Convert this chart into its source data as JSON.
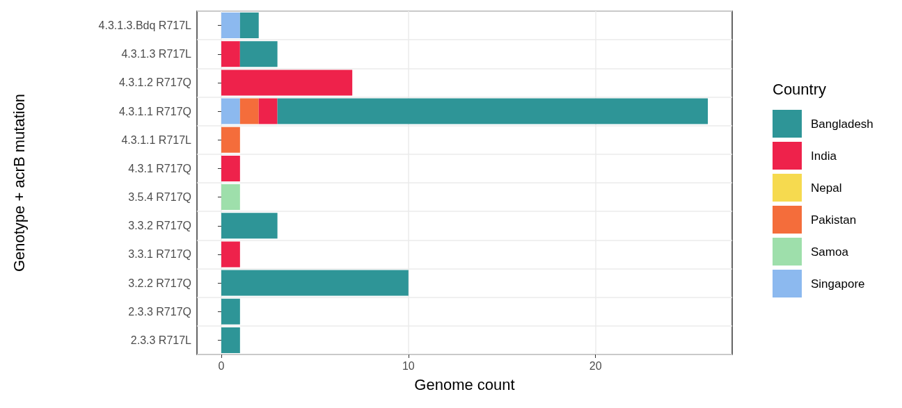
{
  "chart_data": {
    "type": "bar",
    "orientation": "horizontal",
    "stacked": true,
    "xlabel": "Genome count",
    "ylabel": "Genotype + acrB mutation",
    "legend_title": "Country",
    "legend": "right",
    "grid": true,
    "categories": [
      "4.3.1.3.Bdq R717L",
      "4.3.1.3 R717L",
      "4.3.1.2 R717Q",
      "4.3.1.1 R717Q",
      "4.3.1.1 R717L",
      "4.3.1 R717Q",
      "3.5.4 R717Q",
      "3.3.2 R717Q",
      "3.3.1 R717Q",
      "3.2.2 R717Q",
      "2.3.3 R717Q",
      "2.3.3 R717L"
    ],
    "xlim": [
      -1.3,
      27.3
    ],
    "xticks": [
      0,
      10,
      20
    ],
    "series": [
      {
        "name": "Singapore",
        "color": "#8cb9ef",
        "values": [
          1,
          null,
          null,
          1,
          null,
          null,
          null,
          null,
          null,
          null,
          null,
          null
        ]
      },
      {
        "name": "Samoa",
        "color": "#9edfab",
        "values": [
          null,
          null,
          null,
          null,
          null,
          null,
          1,
          null,
          null,
          null,
          null,
          null
        ]
      },
      {
        "name": "Pakistan",
        "color": "#f46d3b",
        "values": [
          null,
          null,
          null,
          1,
          1,
          null,
          null,
          null,
          null,
          null,
          null,
          null
        ]
      },
      {
        "name": "Nepal",
        "color": "#f6da4f",
        "values": [
          null,
          null,
          null,
          null,
          null,
          null,
          null,
          null,
          null,
          null,
          null,
          null
        ]
      },
      {
        "name": "India",
        "color": "#ee224b",
        "values": [
          null,
          1,
          7,
          1,
          null,
          1,
          null,
          null,
          1,
          null,
          null,
          null
        ]
      },
      {
        "name": "Bangladesh",
        "color": "#2e9597",
        "values": [
          1,
          2,
          null,
          23,
          null,
          null,
          null,
          3,
          null,
          10,
          1,
          1
        ]
      }
    ]
  }
}
